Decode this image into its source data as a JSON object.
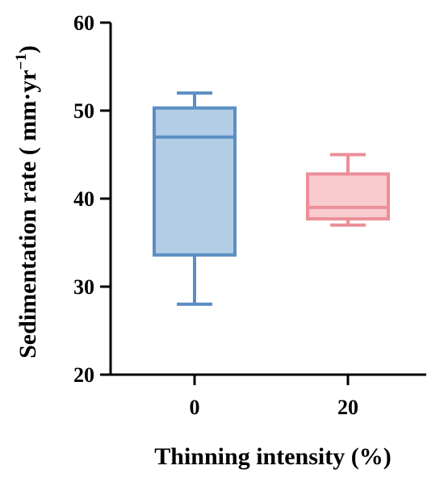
{
  "chart_data": {
    "type": "box",
    "xlabel": "Thinning intensity (%)",
    "ylabel": {
      "main": "Sedimentation rate ( mm·yr",
      "sup": "−1",
      "close": ")"
    },
    "ylim": [
      20,
      60
    ],
    "yticks": [
      20,
      30,
      40,
      50,
      60
    ],
    "grid": false,
    "categories": [
      "0",
      "20"
    ],
    "boxes": [
      {
        "category": "0",
        "min": 28,
        "q1": 33.6,
        "median": 47,
        "q3": 50.3,
        "max": 52,
        "fill": "#b3cde6",
        "stroke": "#5b8ec4"
      },
      {
        "category": "20",
        "min": 37,
        "q1": 37.7,
        "median": 39,
        "q3": 42.8,
        "max": 45,
        "fill": "#f8cbcf",
        "stroke": "#ec8e98"
      }
    ]
  }
}
